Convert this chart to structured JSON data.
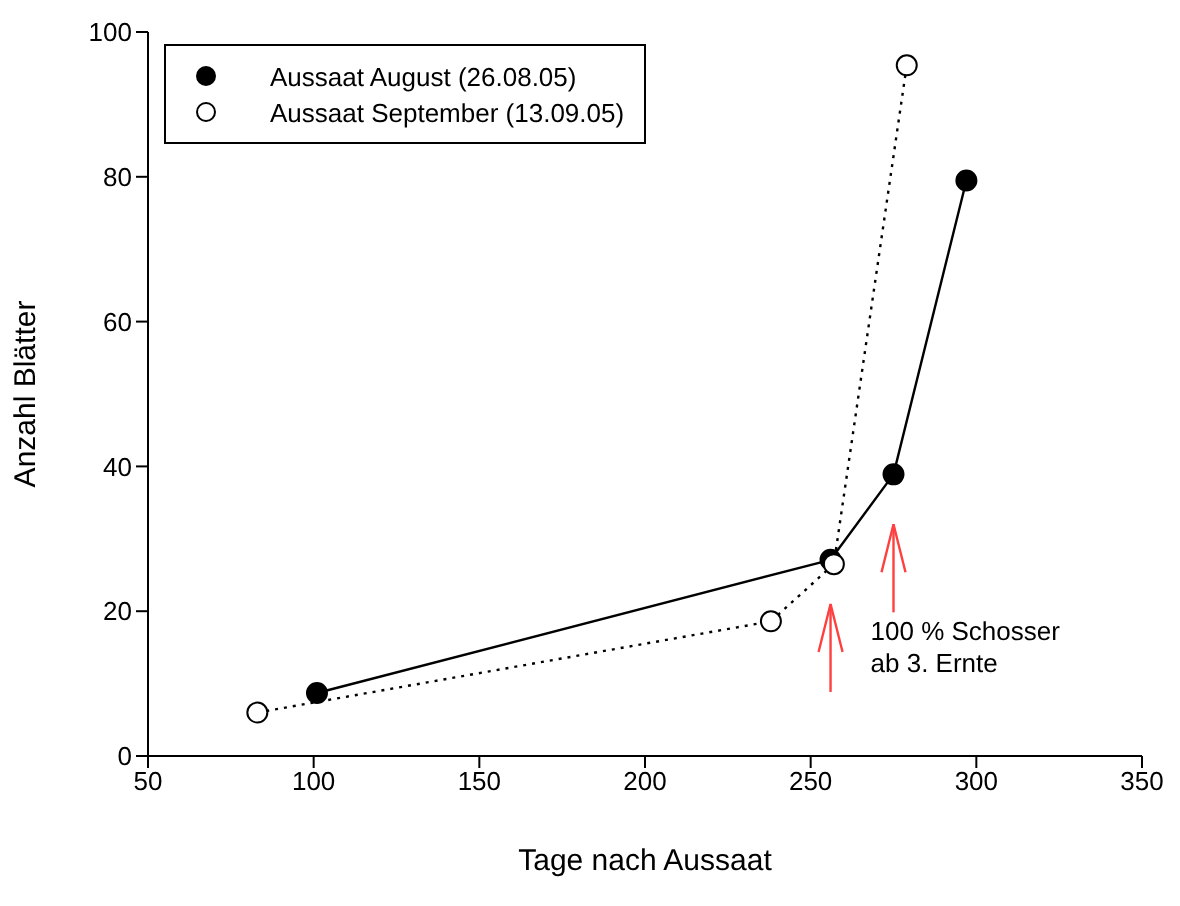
{
  "chart_data": {
    "type": "line",
    "xlabel": "Tage nach Aussaat",
    "ylabel": "Anzahl Blätter",
    "xlim": [
      50,
      350
    ],
    "xticks": [
      50,
      100,
      150,
      200,
      250,
      300,
      350
    ],
    "ylim": [
      0,
      100
    ],
    "yticks": [
      0,
      20,
      40,
      60,
      80,
      100
    ],
    "grid": false,
    "legend": "top left",
    "marker": "circle",
    "series": [
      {
        "name": "Aussaat August (26.08.05)",
        "color": "#000000",
        "line_style": "solid",
        "x": [
          101,
          256,
          275,
          297
        ],
        "values": [
          8.7,
          27.1,
          38.9,
          79.5
        ]
      },
      {
        "name": "Aussaat September (13.09.05)",
        "color": "#000000",
        "line_style": "dotted",
        "x": [
          83,
          238,
          257,
          279
        ],
        "values": [
          6.0,
          18.6,
          26.5,
          95.4
        ]
      }
    ],
    "annotations": [
      {
        "text": "100 % Schosser\nab 3. Ernte",
        "x": 256,
        "y": 27.1
      }
    ]
  }
}
